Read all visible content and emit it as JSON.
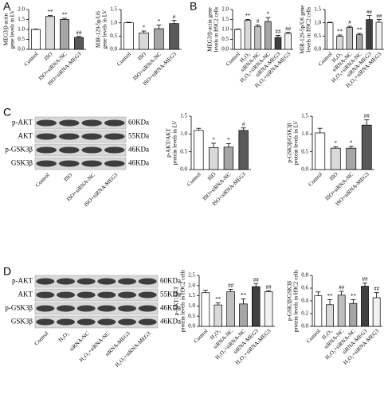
{
  "panels": [
    "A",
    "B",
    "C",
    "D"
  ],
  "blots": [
    {
      "proteins": [
        "p-AKT",
        "AKT",
        "p-GSK3β",
        "GSK3β"
      ],
      "sizes": [
        "60KDa",
        "55KDa",
        "46KDa",
        "46KDa"
      ],
      "lanes": [
        "Control",
        "ISO",
        "ISO+siRNA-NC",
        "ISO+siRNA-MEG3"
      ]
    },
    {
      "proteins": [
        "p-AKT",
        "AKT",
        "p-GSK3β",
        "GSK3β"
      ],
      "sizes": [
        "60KDa",
        "55KDa",
        "46KDa",
        "46KDa"
      ],
      "lanes": [
        "Control",
        "H₂O₂",
        "siRNA-NC",
        "H₂O₂+siRNA-NC",
        "siRNA-MEG3",
        "H₂O₂+siRNA-MEG3"
      ]
    }
  ],
  "chart_data": [
    {
      "type": "bar",
      "ylabel": [
        "MEG3/β-actin",
        "gene levels in LV"
      ],
      "categories": [
        "Control",
        "ISO",
        "ISO+siRNA-NC",
        "ISO+siRNA-MEG3"
      ],
      "values": [
        1.0,
        1.65,
        1.5,
        0.6
      ],
      "errors": [
        0.02,
        0.05,
        0.06,
        0.05
      ],
      "annotations": [
        null,
        "**",
        "**",
        "##"
      ],
      "colors": [
        "#ffffff",
        "#d9d9d9",
        "#a6a6a6",
        "#595959"
      ],
      "ylim": [
        0,
        2.0
      ],
      "yticks": [
        {
          "value": 0,
          "label": "0.0"
        },
        0.5,
        {
          "value": 1,
          "label": "1.0"
        },
        1.5,
        {
          "value": 2,
          "label": "2.0"
        }
      ]
    },
    {
      "type": "bar",
      "ylabel": [
        "MIR-129-5p/U6",
        "gene levels in LV"
      ],
      "categories": [
        "Control",
        "ISO",
        "ISO+siRNA-NC",
        "ISO+siRNA-MEG3"
      ],
      "values": [
        1.0,
        0.62,
        0.78,
        0.97
      ],
      "errors": [
        0.02,
        0.07,
        0.14,
        0.12
      ],
      "annotations": [
        null,
        "*",
        "*",
        "#"
      ],
      "colors": [
        "#ffffff",
        "#d9d9d9",
        "#a6a6a6",
        "#595959"
      ],
      "ylim": [
        0,
        1.5
      ],
      "yticks": [
        {
          "value": 0,
          "label": "0.0"
        },
        0.5,
        {
          "value": 1,
          "label": "1.0"
        },
        1.5
      ]
    },
    {
      "type": "bar",
      "ylabel": [
        "MEG3/β-actin gene",
        "levels in H9C2 cells"
      ],
      "categories": [
        "Control",
        "H₂O₂",
        "siRNA-NC",
        "H₂O₂+siRNA-NC",
        "siRNA-MEG3",
        "H₂O₂+siRNA-MEG3"
      ],
      "values": [
        1.0,
        1.45,
        1.15,
        1.4,
        0.6,
        0.8
      ],
      "errors": [
        0.02,
        0.05,
        0.08,
        0.2,
        0.1,
        0.05
      ],
      "annotations": [
        null,
        "**",
        "#",
        "*",
        "##",
        "##"
      ],
      "colors": [
        "#ffffff",
        "#d9d9d9",
        "#bfbfbf",
        "#a6a6a6",
        "#404040",
        "#f2f2f2"
      ],
      "ylim": [
        0,
        2.0
      ],
      "yticks": [
        {
          "value": 0,
          "label": "0.0"
        },
        0.5,
        {
          "value": 1,
          "label": "1.0"
        },
        1.5,
        {
          "value": 2,
          "label": "2.0"
        }
      ]
    },
    {
      "type": "bar",
      "ylabel": [
        "MIR-129-5p/U6 gene",
        "levels in H9C2 cells"
      ],
      "categories": [
        "Control",
        "H₂O₂",
        "siRNA-NC",
        "H₂O₂+siRNA-NC",
        "siRNA-MEG3",
        "H₂O₂+siRNA-MEG3"
      ],
      "values": [
        1.0,
        0.5,
        0.82,
        0.55,
        1.12,
        1.02
      ],
      "errors": [
        0.02,
        0.04,
        0.05,
        0.05,
        0.15,
        0.1
      ],
      "annotations": [
        null,
        "**",
        "#",
        "**",
        "##",
        "##"
      ],
      "colors": [
        "#ffffff",
        "#d9d9d9",
        "#bfbfbf",
        "#a6a6a6",
        "#404040",
        "#f2f2f2"
      ],
      "ylim": [
        0,
        1.5
      ],
      "yticks": [
        {
          "value": 0,
          "label": "0.0"
        },
        0.5,
        {
          "value": 1,
          "label": "1.0"
        },
        1.5
      ]
    },
    {
      "type": "bar",
      "ylabel": [
        "p-AKT/AKT",
        "protein levels in LV"
      ],
      "categories": [
        "Control",
        "ISO",
        "ISO+siRNA-NC",
        "ISO+siRNA-MEG3"
      ],
      "values": [
        1.1,
        0.62,
        0.63,
        1.1
      ],
      "errors": [
        0.06,
        0.12,
        0.1,
        0.07
      ],
      "annotations": [
        null,
        "*",
        "*",
        "#"
      ],
      "colors": [
        "#ffffff",
        "#d9d9d9",
        "#a6a6a6",
        "#595959"
      ],
      "ylim": [
        0,
        1.5
      ],
      "yticks": [
        {
          "value": 0,
          "label": "0.0"
        },
        0.5,
        {
          "value": 1,
          "label": "1.0"
        },
        1.5
      ]
    },
    {
      "type": "bar",
      "ylabel": [
        "p-GSK3β/GSK3β",
        "protein levels in LV"
      ],
      "categories": [
        "Control",
        "ISO",
        "ISO+siRNA-NC",
        "ISO+siRNA-MEG3"
      ],
      "values": [
        1.03,
        0.6,
        0.6,
        1.25
      ],
      "errors": [
        0.13,
        0.04,
        0.05,
        0.15
      ],
      "annotations": [
        null,
        "*",
        "*",
        "##"
      ],
      "colors": [
        "#ffffff",
        "#d9d9d9",
        "#a6a6a6",
        "#595959"
      ],
      "ylim": [
        0,
        1.5
      ],
      "yticks": [
        {
          "value": 0,
          "label": "0.0"
        },
        0.5,
        {
          "value": 1,
          "label": "1.0"
        },
        1.5
      ]
    },
    {
      "type": "bar",
      "ylabel": [
        "p-AKT/AKT",
        "protein levels in H9C2 cells"
      ],
      "categories": [
        "Control",
        "H₂O₂",
        "siRNA-NC",
        "H₂O₂+siRNA-NC",
        "siRNA-MEG3",
        "H₂O₂+siRNA-MEG3"
      ],
      "values": [
        1.65,
        1.05,
        1.7,
        1.1,
        1.95,
        1.7
      ],
      "errors": [
        0.12,
        0.1,
        0.12,
        0.25,
        0.15,
        0.05
      ],
      "annotations": [
        null,
        "**",
        "##",
        "**",
        "##",
        "##"
      ],
      "colors": [
        "#ffffff",
        "#d9d9d9",
        "#bfbfbf",
        "#a6a6a6",
        "#404040",
        "#f2f2f2"
      ],
      "ylim": [
        0,
        2.5
      ],
      "yticks": [
        {
          "value": 0,
          "label": "0.0"
        },
        0.5,
        {
          "value": 1,
          "label": "1.0"
        },
        1.5,
        {
          "value": 2,
          "label": "2.0"
        },
        2.5
      ]
    },
    {
      "type": "bar",
      "ylabel": [
        "p-GSK3β/GSK3β",
        "protein levels in H9C2 cells"
      ],
      "categories": [
        "Control",
        "H₂O₂",
        "siRNA-NC",
        "H₂O₂+siRNA-NC",
        "siRNA-MEG3",
        "H₂O₂+siRNA-MEG3"
      ],
      "values": [
        0.48,
        0.34,
        0.49,
        0.36,
        0.63,
        0.45
      ],
      "errors": [
        0.06,
        0.08,
        0.06,
        0.06,
        0.05,
        0.08
      ],
      "annotations": [
        null,
        "**",
        "##",
        "**",
        "##",
        "##"
      ],
      "colors": [
        "#ffffff",
        "#d9d9d9",
        "#bfbfbf",
        "#a6a6a6",
        "#404040",
        "#f2f2f2"
      ],
      "ylim": [
        0,
        0.8
      ],
      "yticks": [
        {
          "value": 0,
          "label": "0.0"
        },
        0.2,
        0.4,
        0.6,
        0.8
      ]
    }
  ]
}
